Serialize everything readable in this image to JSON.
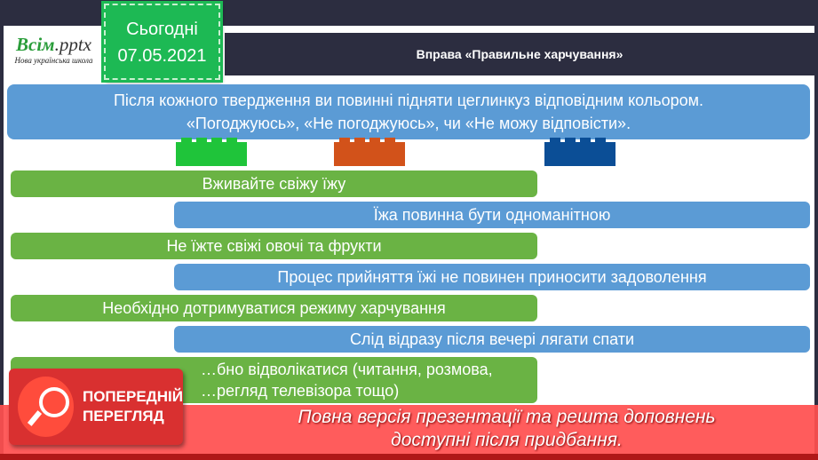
{
  "logo": {
    "brand": "Всім",
    "ext": ".pptx",
    "tagline": "Нова українська школа"
  },
  "date_box": {
    "label": "Сьогодні",
    "date": "07.05.2021"
  },
  "title": "Вправа «Правильне харчування»",
  "instruction": {
    "line1": "Після кожного твердження ви повинні підняти цеглинкуз відповідним кольором.",
    "line2": "«Погоджуюсь», «Не погоджуюсь», чи «Не можу відповісти»."
  },
  "bricks": [
    {
      "color": "#1fc43a"
    },
    {
      "color": "#d2521a"
    },
    {
      "color": "#0b4e96"
    }
  ],
  "statements": [
    "Вживайте свіжу їжу",
    "Їжа повинна бути одноманітною",
    "Не їжте свіжі овочі та фрукти",
    "Процес прийняття їжі не повинен приносити задоволення",
    "Необхідно дотримуватися режиму харчування",
    "Слід відразу після вечері лягати спати",
    "…бно відволікатися (читання, розмова,",
    "…регляд телевізора тощо)"
  ],
  "preview": {
    "badge_line1": "ПОПЕРЕДНІЙ",
    "badge_line2": "ПЕРЕГЛЯД",
    "notice_line1": "Повна версія презентації та решта доповнень",
    "notice_line2": "доступні після придбання."
  }
}
